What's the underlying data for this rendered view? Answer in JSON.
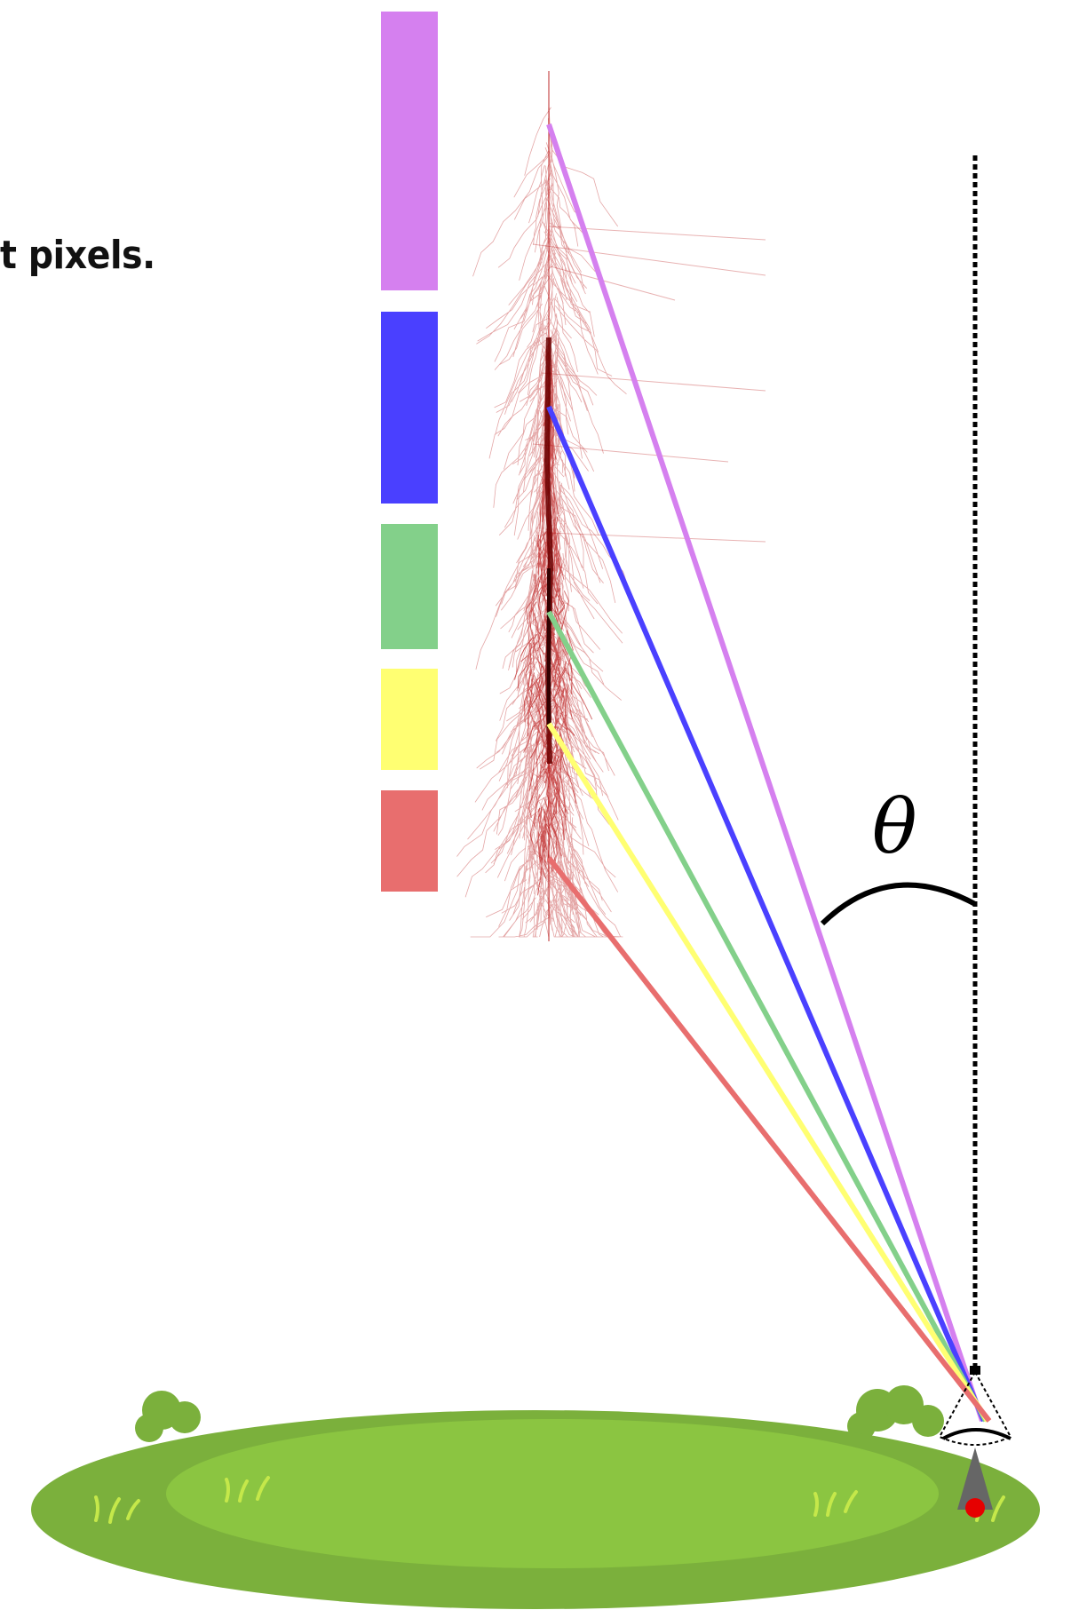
{
  "caption": "t pixels.",
  "angle_label": "θ",
  "colors": {
    "shower": "#b30000",
    "shower_core": "#6a0000",
    "pixel_1": "#d580ef",
    "pixel_2": "#4a40ff",
    "pixel_3": "#83d08a",
    "pixel_4": "#ffff72",
    "pixel_5": "#e86e6e",
    "ground_outer": "#7bb03c",
    "ground_inner": "#8bc541",
    "telescope": "#666666",
    "telescope_dot": "#e60000"
  },
  "pixels": [
    {
      "name": "pixel-violet",
      "color": "#d580ef"
    },
    {
      "name": "pixel-blue",
      "color": "#4a40ff"
    },
    {
      "name": "pixel-green",
      "color": "#83d08a"
    },
    {
      "name": "pixel-yellow",
      "color": "#ffff72"
    },
    {
      "name": "pixel-red",
      "color": "#e86e6e"
    }
  ],
  "icons": {
    "shower": "air-shower-illustration",
    "telescope": "telescope-icon",
    "ground": "grass-ground-icon"
  }
}
